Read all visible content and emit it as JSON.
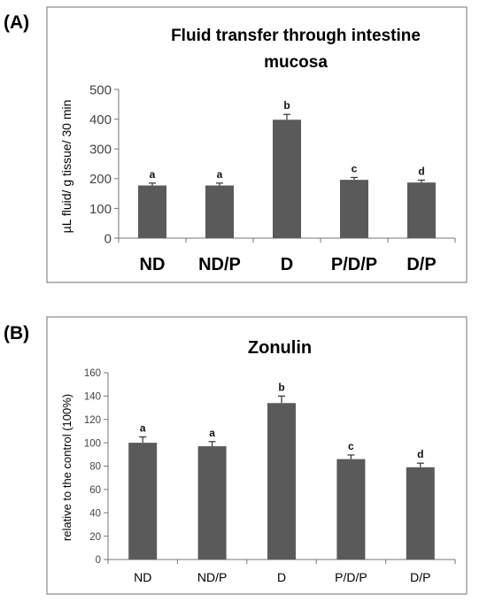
{
  "chart_data": [
    {
      "panel": "(A)",
      "type": "bar",
      "title": "Fluid transfer through intestine mucosa",
      "ylabel": "µL fluid/ g tissue/ 30 min",
      "xlabel": "",
      "categories": [
        "ND",
        "ND/P",
        "D",
        "P/D/P",
        "D/P"
      ],
      "values": [
        177,
        177,
        398,
        196,
        187
      ],
      "errors": [
        8,
        8,
        18,
        8,
        8
      ],
      "significance": [
        "a",
        "a",
        "b",
        "c",
        "d"
      ],
      "ylim": [
        0,
        500
      ],
      "yticks": [
        "0",
        "100",
        "200",
        "300",
        "400",
        "500"
      ],
      "bar_color": "#5a5a5a",
      "grid": false,
      "legend": "none"
    },
    {
      "panel": "(B)",
      "type": "bar",
      "title": "Zonulin",
      "ylabel": "relative to the control (100%)",
      "xlabel": "",
      "categories": [
        "ND",
        "ND/P",
        "D",
        "P/D/P",
        "D/P"
      ],
      "values": [
        100,
        97,
        134,
        86,
        79
      ],
      "errors": [
        5,
        4,
        6,
        3.5,
        3.5
      ],
      "significance": [
        "a",
        "a",
        "b",
        "c",
        "d"
      ],
      "ylim": [
        0,
        160
      ],
      "yticks": [
        "0",
        "20",
        "40",
        "60",
        "80",
        "100",
        "120",
        "140",
        "160"
      ],
      "bar_color": "#5a5a5a",
      "grid": false,
      "legend": "none"
    }
  ]
}
